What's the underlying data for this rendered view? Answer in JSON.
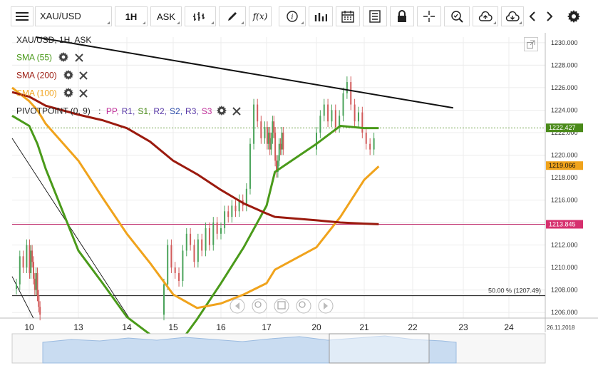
{
  "toolbar": {
    "symbol": "XAU/USD",
    "timeframe": "1H",
    "price_side": "ASK",
    "fx_label": "f(x)",
    "icons": [
      "menu-icon",
      "bar-chart-icon",
      "pencil-icon",
      "function-icon",
      "info-icon",
      "volume-icon",
      "calendar-icon",
      "document-icon",
      "lock-icon",
      "crosshair-icon",
      "zoom-icon",
      "upload-icon",
      "download-icon",
      "chevron-left-icon",
      "chevron-right-icon",
      "gear-icon"
    ]
  },
  "legend": {
    "title": "XAU/USD, 1H, ASK",
    "sma55": {
      "label": "SMA (55)",
      "color": "#4a9a1a"
    },
    "sma200": {
      "label": "SMA (200)",
      "color": "#9b1a0e"
    },
    "sma100": {
      "label": "SMA (100)",
      "color": "#f0a31c"
    },
    "pivot": {
      "label": "PIVOTPOINT (0, 9)",
      "sep": ":",
      "items": [
        {
          "text": "PP,",
          "color": "#c0309a"
        },
        {
          "text": "R1,",
          "color": "#5a3aa8"
        },
        {
          "text": "S1,",
          "color": "#4a8a1a"
        },
        {
          "text": "R2,",
          "color": "#5a3aa8"
        },
        {
          "text": "S2,",
          "color": "#2a4aa8"
        },
        {
          "text": "R3,",
          "color": "#5a3aa8"
        },
        {
          "text": "S3",
          "color": "#c0309a"
        }
      ]
    }
  },
  "chart_data": {
    "type": "line",
    "title": "XAU/USD, 1H, ASK",
    "ylim": [
      1205.5,
      1230.5
    ],
    "y_ticks": [
      "1230.000",
      "1228.000",
      "1226.000",
      "1224.000",
      "1222.000",
      "1220.000",
      "1218.000",
      "1216.000",
      "1214.000",
      "1212.000",
      "1210.000",
      "1208.000",
      "1206.000"
    ],
    "y_tick_values": [
      1230,
      1228,
      1226,
      1224,
      1222,
      1220,
      1218,
      1216,
      1214,
      1212,
      1210,
      1208,
      1206
    ],
    "x_ticks": [
      "10",
      "13",
      "14",
      "15",
      "16",
      "17",
      "20",
      "21",
      "22",
      "23",
      "24"
    ],
    "x_tick_days": [
      10,
      13,
      14,
      15,
      16,
      17,
      20,
      21,
      22,
      23,
      24
    ],
    "date_label": "26.11.2018",
    "price_labels": [
      {
        "text": "1222.427",
        "value": 1222.427,
        "bg": "#4a8a1a",
        "fg": "#ffffff"
      },
      {
        "text": "1219.066",
        "value": 1219.066,
        "bg": "#f0a31c",
        "fg": "#111111"
      },
      {
        "text": "1213.845",
        "value": 1213.845,
        "bg": "#d6306e",
        "fg": "#ffffff"
      }
    ],
    "fib_label": "50.00 % (1207.49)",
    "fib_value": 1207.49,
    "pivot_value": 1213.845,
    "series": [
      {
        "name": "SMA (55)",
        "color": "#4a9a1a",
        "x": [
          9.6,
          10,
          10.5,
          11,
          13,
          13.5,
          14,
          15,
          15.5,
          16,
          16.5,
          17,
          17.5,
          20,
          20.5,
          21,
          21.3
        ],
        "values": [
          1223.5,
          1222.6,
          1221.0,
          1218.8,
          1211.5,
          1208.6,
          1205.6,
          1202.5,
          1205.4,
          1208.6,
          1211.8,
          1215.5,
          1218.5,
          1221.0,
          1222.6,
          1222.4,
          1222.4
        ]
      },
      {
        "name": "SMA (100)",
        "color": "#f0a31c",
        "x": [
          9.6,
          10,
          10.5,
          11,
          13,
          13.5,
          14,
          14.5,
          15,
          15.5,
          16,
          16.5,
          17,
          17.5,
          20,
          20.5,
          21,
          21.3
        ],
        "values": [
          1226.0,
          1224.8,
          1224.0,
          1222.8,
          1219.5,
          1216.2,
          1213.0,
          1210.4,
          1207.6,
          1206.4,
          1206.8,
          1207.6,
          1208.6,
          1209.8,
          1211.8,
          1214.5,
          1217.8,
          1219.0
        ]
      },
      {
        "name": "SMA (200)",
        "color": "#9b1a0e",
        "x": [
          9.6,
          10,
          10.5,
          11,
          13,
          13.5,
          14,
          14.5,
          15,
          15.5,
          16,
          16.5,
          17,
          17.5,
          20,
          20.5,
          21,
          21.3
        ],
        "values": [
          1225.6,
          1225.2,
          1224.8,
          1224.4,
          1223.6,
          1223.1,
          1222.4,
          1221.2,
          1219.5,
          1218.3,
          1216.9,
          1215.7,
          1214.8,
          1214.5,
          1214.2,
          1214.0,
          1213.9,
          1213.85
        ]
      },
      {
        "name": "Trendline",
        "color": "#111111",
        "x": [
          10.4,
          22.8
        ],
        "values": [
          1230.5,
          1224.2
        ]
      }
    ],
    "candles_close": [
      [
        9.7,
        1208.5
      ],
      [
        9.78,
        1211.0
      ],
      [
        9.86,
        1210.0
      ],
      [
        9.94,
        1212.0
      ],
      [
        10.02,
        1209.5
      ],
      [
        10.1,
        1211.5
      ],
      [
        10.18,
        1210.5
      ],
      [
        10.26,
        1209.0
      ],
      [
        10.34,
        1208.0
      ],
      [
        10.42,
        1209.5
      ],
      [
        10.5,
        1207.5
      ],
      [
        10.58,
        1206.5
      ],
      [
        10.66,
        1205.8
      ],
      [
        14.8,
        1208.5
      ],
      [
        14.88,
        1212.0
      ],
      [
        14.96,
        1210.0
      ],
      [
        15.04,
        1209.5
      ],
      [
        15.12,
        1208.8
      ],
      [
        15.2,
        1211.5
      ],
      [
        15.28,
        1213.0
      ],
      [
        15.36,
        1212.0
      ],
      [
        15.44,
        1210.5
      ],
      [
        15.52,
        1212.5
      ],
      [
        15.6,
        1211.5
      ],
      [
        15.68,
        1213.5
      ],
      [
        15.76,
        1212.0
      ],
      [
        15.84,
        1214.0
      ],
      [
        15.92,
        1213.0
      ],
      [
        16.0,
        1213.5
      ],
      [
        16.08,
        1215.0
      ],
      [
        16.16,
        1214.5
      ],
      [
        16.24,
        1215.5
      ],
      [
        16.32,
        1215.0
      ],
      [
        16.4,
        1216.0
      ],
      [
        16.48,
        1215.5
      ],
      [
        16.56,
        1217.0
      ],
      [
        16.64,
        1221.0
      ],
      [
        16.72,
        1224.5
      ],
      [
        16.8,
        1223.0
      ],
      [
        16.88,
        1221.5
      ],
      [
        16.96,
        1222.5
      ],
      [
        17.04,
        1221.0
      ],
      [
        17.12,
        1222.0
      ],
      [
        17.2,
        1220.5
      ],
      [
        17.28,
        1221.5
      ],
      [
        17.36,
        1223.0
      ],
      [
        17.44,
        1222.0
      ],
      [
        17.52,
        1219.5
      ],
      [
        17.6,
        1218.5
      ],
      [
        17.68,
        1219.5
      ],
      [
        17.76,
        1221.0
      ],
      [
        17.84,
        1220.5
      ],
      [
        17.92,
        1222.0
      ],
      [
        18.0,
        1220.5
      ],
      [
        20.0,
        1222.0
      ],
      [
        20.08,
        1223.5
      ],
      [
        20.16,
        1224.5
      ],
      [
        20.24,
        1223.0
      ],
      [
        20.32,
        1224.0
      ],
      [
        20.4,
        1222.5
      ],
      [
        20.48,
        1223.5
      ],
      [
        20.56,
        1225.5
      ],
      [
        20.64,
        1226.5
      ],
      [
        20.72,
        1224.5
      ],
      [
        20.8,
        1223.0
      ],
      [
        20.88,
        1223.8
      ],
      [
        20.96,
        1222.0
      ],
      [
        21.04,
        1221.0
      ],
      [
        21.12,
        1220.5
      ],
      [
        21.2,
        1221.5
      ]
    ]
  }
}
